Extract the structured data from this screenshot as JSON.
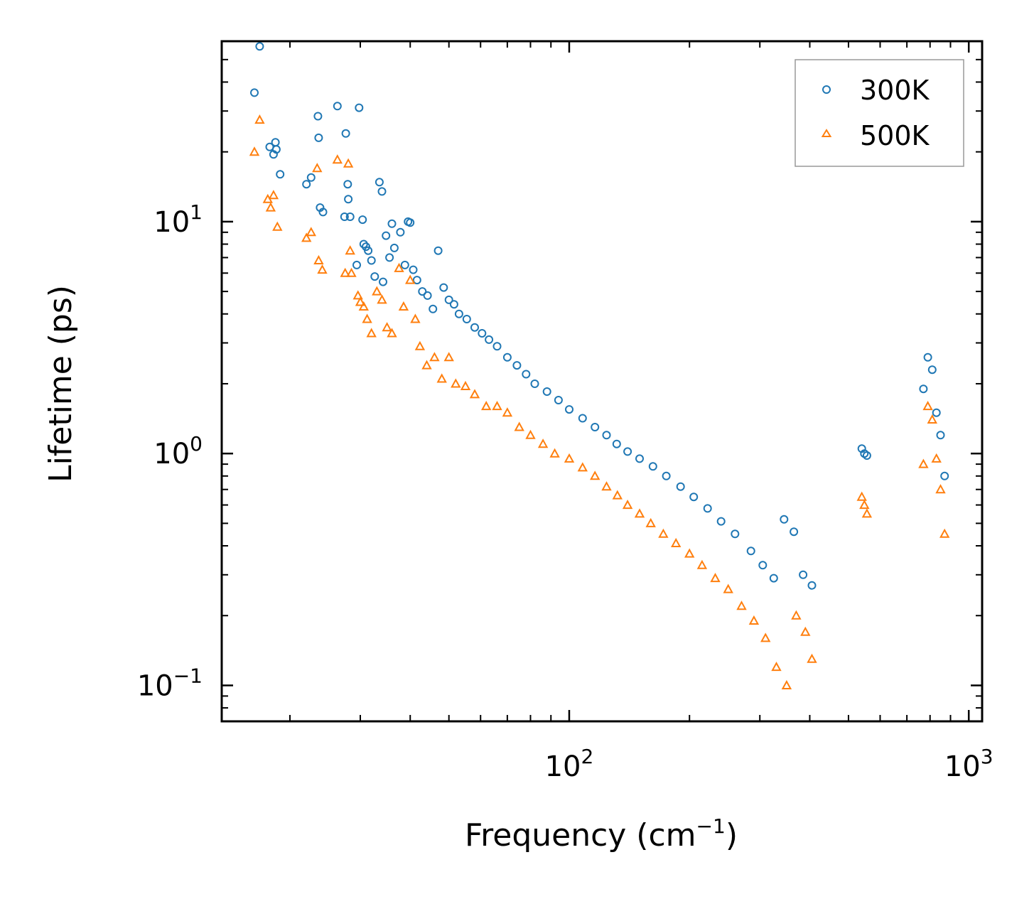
{
  "chart_data": {
    "type": "scatter",
    "title": "",
    "xscale": "log",
    "yscale": "log",
    "xlim": [
      13.5,
      1080
    ],
    "ylim": [
      0.07,
      60
    ],
    "xlabel": {
      "base": "Frequency (cm",
      "sup": "−1",
      "end": ")"
    },
    "ylabel": "Lifetime (ps)",
    "x_ticks": [
      {
        "value": 100,
        "base": "10",
        "exp": "2"
      },
      {
        "value": 1000,
        "base": "10",
        "exp": "3"
      }
    ],
    "y_ticks": [
      {
        "value": 0.1,
        "base": "10",
        "exp": "−1"
      },
      {
        "value": 1,
        "base": "10",
        "exp": "0"
      },
      {
        "value": 10,
        "base": "10",
        "exp": "1"
      }
    ],
    "grid": false,
    "legend_position": "top-right",
    "series": [
      {
        "name": "300K",
        "color": "#1f77b4",
        "marker": "circle",
        "x": [
          16.3,
          16.8,
          17.8,
          18.2,
          18.4,
          18.5,
          18.9,
          22.0,
          22.6,
          23.5,
          23.6,
          23.8,
          24.2,
          26.3,
          27.4,
          27.6,
          27.9,
          28.0,
          28.3,
          29.4,
          29.8,
          30.4,
          30.6,
          31.0,
          31.4,
          32.0,
          32.6,
          33.5,
          34.0,
          34.2,
          34.8,
          35.5,
          36.0,
          36.5,
          37.8,
          38.8,
          39.5,
          40.0,
          40.7,
          41.6,
          42.9,
          44.2,
          45.6,
          47.0,
          48.5,
          50.0,
          51.5,
          53.0,
          55.4,
          58.0,
          60.5,
          63.0,
          66.0,
          70.0,
          74.0,
          78.0,
          82.0,
          88.0,
          94.0,
          100.0,
          108.0,
          116.0,
          124.0,
          131.5,
          140.0,
          150.0,
          162.0,
          175.0,
          190.0,
          205.0,
          222.0,
          240.0,
          260.0,
          285.0,
          305.0,
          325.0,
          345.0,
          365.0,
          385.0,
          405.0,
          540.0,
          548.0,
          556.0,
          770.0,
          790.0,
          810.0,
          830.0,
          850.0,
          870.0
        ],
        "y": [
          36.0,
          57.0,
          21.0,
          19.5,
          22.0,
          20.5,
          16.0,
          14.5,
          15.5,
          28.5,
          23.0,
          11.5,
          11.0,
          31.5,
          10.5,
          24.0,
          14.5,
          12.5,
          10.5,
          6.5,
          31.0,
          10.2,
          8.0,
          7.8,
          7.5,
          6.8,
          5.8,
          14.8,
          13.5,
          5.5,
          8.7,
          7.0,
          9.8,
          7.7,
          9.0,
          6.5,
          10.0,
          9.9,
          6.2,
          5.6,
          5.0,
          4.8,
          4.2,
          7.5,
          5.2,
          4.6,
          4.4,
          4.0,
          3.8,
          3.5,
          3.3,
          3.1,
          2.9,
          2.6,
          2.4,
          2.2,
          2.0,
          1.85,
          1.7,
          1.55,
          1.42,
          1.3,
          1.2,
          1.1,
          1.02,
          0.95,
          0.88,
          0.8,
          0.72,
          0.65,
          0.58,
          0.51,
          0.45,
          0.38,
          0.33,
          0.29,
          0.52,
          0.46,
          0.3,
          0.27,
          1.05,
          1.0,
          0.98,
          1.9,
          2.6,
          2.3,
          1.5,
          1.2,
          0.8
        ]
      },
      {
        "name": "500K",
        "color": "#ff7f0e",
        "marker": "triangle",
        "x": [
          16.3,
          16.8,
          17.6,
          17.9,
          18.2,
          18.6,
          22.0,
          22.6,
          23.4,
          23.6,
          24.1,
          26.3,
          27.5,
          28.0,
          28.3,
          28.5,
          29.6,
          30.0,
          30.6,
          31.2,
          32.0,
          33.0,
          34.0,
          35.0,
          36.0,
          37.5,
          38.5,
          40.0,
          41.2,
          42.3,
          44.0,
          46.0,
          48.0,
          50.0,
          52.0,
          55.0,
          58.0,
          62.0,
          66.0,
          70.0,
          75.0,
          80.0,
          86.0,
          92.0,
          100.0,
          108.0,
          116.0,
          124.0,
          132.0,
          140.0,
          150.0,
          160.0,
          172.0,
          185.0,
          200.0,
          215.0,
          232.0,
          250.0,
          270.0,
          290.0,
          310.0,
          330.0,
          350.0,
          370.0,
          390.0,
          405.0,
          540.0,
          548.0,
          556.0,
          770.0,
          790.0,
          810.0,
          830.0,
          850.0,
          870.0
        ],
        "y": [
          20.0,
          27.5,
          12.5,
          11.5,
          13.0,
          9.5,
          8.5,
          9.0,
          17.0,
          6.8,
          6.2,
          18.5,
          6.0,
          17.8,
          7.5,
          6.0,
          4.8,
          4.5,
          4.3,
          3.8,
          3.3,
          5.0,
          4.6,
          3.5,
          3.3,
          6.3,
          4.3,
          5.6,
          3.8,
          2.9,
          2.4,
          2.6,
          2.1,
          2.6,
          2.0,
          1.95,
          1.8,
          1.6,
          1.6,
          1.5,
          1.3,
          1.2,
          1.1,
          1.0,
          0.95,
          0.87,
          0.8,
          0.72,
          0.66,
          0.6,
          0.55,
          0.5,
          0.45,
          0.41,
          0.37,
          0.33,
          0.29,
          0.26,
          0.22,
          0.19,
          0.16,
          0.12,
          0.1,
          0.2,
          0.17,
          0.13,
          0.65,
          0.6,
          0.55,
          0.9,
          1.6,
          1.4,
          0.95,
          0.7,
          0.45
        ]
      }
    ]
  }
}
